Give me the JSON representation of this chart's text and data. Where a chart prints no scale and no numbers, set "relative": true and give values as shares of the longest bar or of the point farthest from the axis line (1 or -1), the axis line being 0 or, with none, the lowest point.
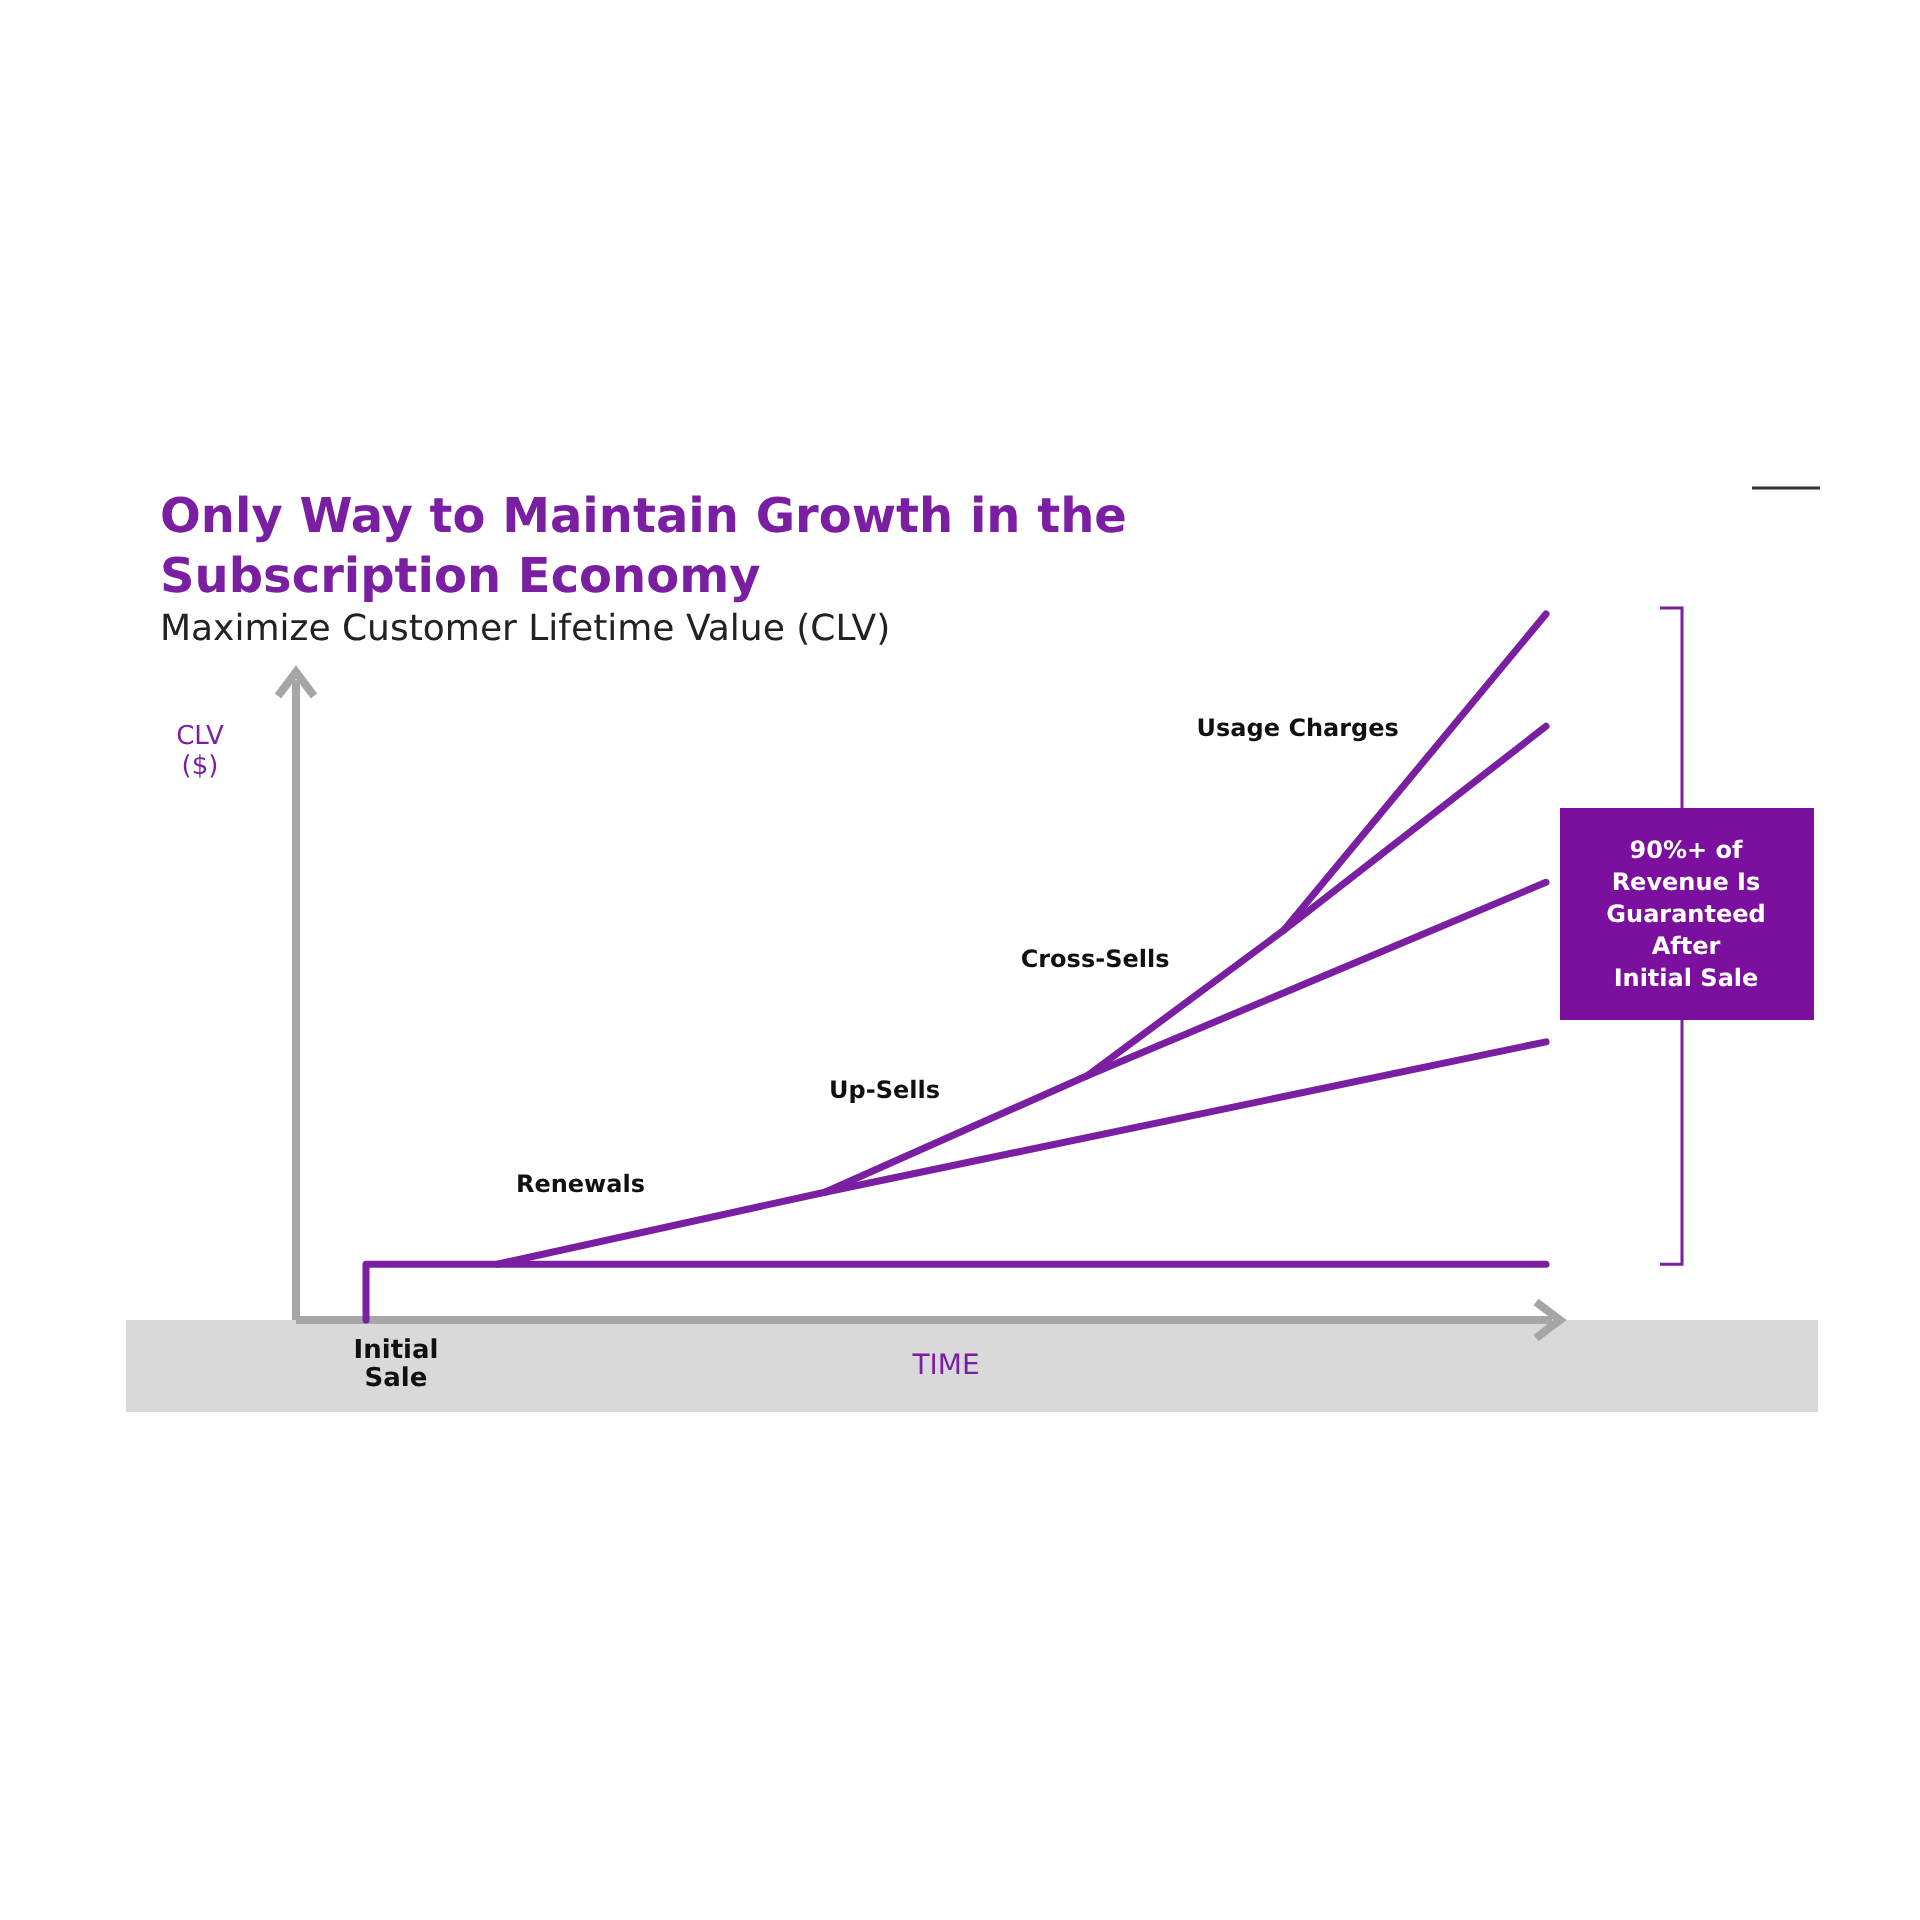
{
  "chart_data": {
    "type": "line",
    "title": "Only Way to Maintain Growth in the Subscription Economy",
    "subtitle": "Maximize Customer Lifetime Value (CLV)",
    "xlabel": "TIME",
    "ylabel": "CLV ($)",
    "relative": true,
    "categories": [
      null,
      null,
      null,
      null,
      null,
      null,
      null,
      null,
      null,
      null,
      null,
      null,
      null,
      null,
      null,
      null,
      null,
      null,
      null
    ],
    "series": [
      {
        "type": "step",
        "color": "#7a1fa2",
        "values": [
          0,
          0.079,
          0.079,
          0.079,
          0.079,
          0.079,
          0.079,
          0.079,
          0.079,
          0.079,
          0.079,
          0.079,
          0.079,
          0.079,
          0.079,
          0.079,
          0.079,
          0.079,
          0.079
        ]
      },
      {
        "name": "Renewals",
        "color": "#7a1fa2",
        "values": [
          null,
          null,
          0.079,
          null,
          null,
          null,
          null,
          0.181,
          null,
          null,
          null,
          null,
          null,
          null,
          null,
          null,
          null,
          null,
          0.394
        ]
      },
      {
        "name": "Up-Sells",
        "color": "#7a1fa2",
        "values": [
          null,
          null,
          null,
          null,
          null,
          null,
          null,
          0.181,
          null,
          null,
          null,
          0.346,
          null,
          null,
          null,
          null,
          null,
          null,
          0.62
        ]
      },
      {
        "name": "Cross-Sells",
        "color": "#7a1fa2",
        "values": [
          null,
          null,
          null,
          null,
          null,
          null,
          null,
          null,
          null,
          null,
          null,
          0.346,
          null,
          null,
          0.552,
          null,
          null,
          null,
          0.841
        ]
      },
      {
        "name": "Usage Charges",
        "color": "#7a1fa2",
        "values": [
          null,
          null,
          null,
          null,
          null,
          null,
          null,
          null,
          null,
          null,
          null,
          null,
          null,
          null,
          0.552,
          null,
          null,
          null,
          1
        ]
      }
    ],
    "annotations": [
      "Initial Sale",
      "90%+ of Revenue Is Guaranteed After Initial Sale"
    ]
  }
}
